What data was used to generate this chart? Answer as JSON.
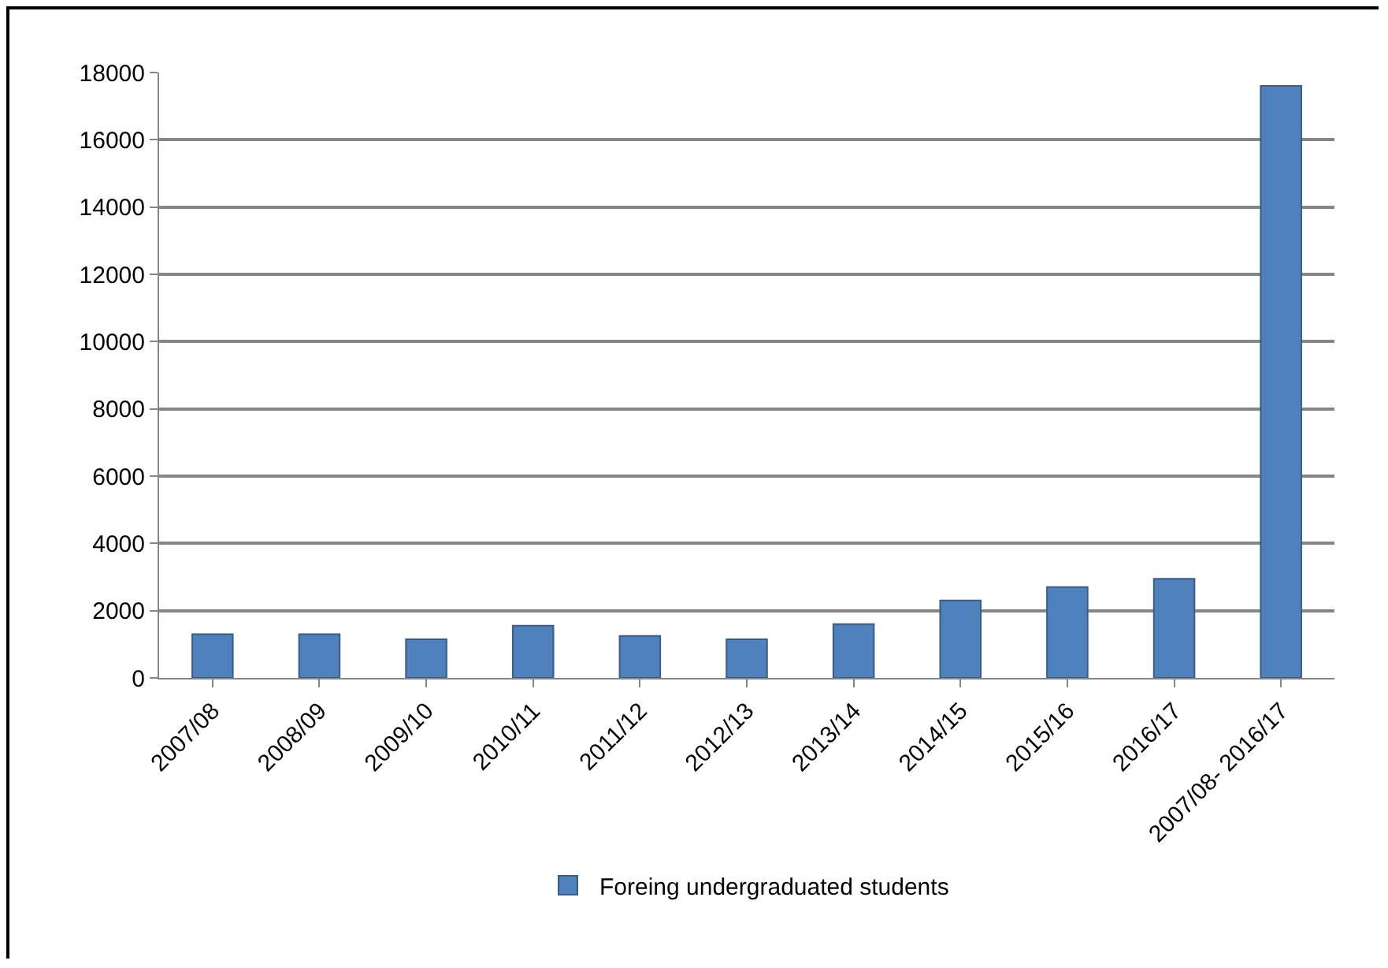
{
  "chart_data": {
    "type": "bar",
    "categories": [
      "2007/08",
      "2008/09",
      "2009/10",
      "2010/11",
      "2011/12",
      "2012/13",
      "2013/14",
      "2014/15",
      "2015/16",
      "2016/17",
      "2007/08- 2016/17"
    ],
    "series": [
      {
        "name": "Foreing undergraduated students",
        "color": "#4f81bd",
        "values": [
          1300,
          1300,
          1150,
          1550,
          1250,
          1150,
          1600,
          2300,
          2700,
          2950,
          17600
        ]
      }
    ],
    "ylim": [
      0,
      18000
    ],
    "yticks": [
      0,
      2000,
      4000,
      6000,
      8000,
      10000,
      12000,
      14000,
      16000,
      18000
    ],
    "grid": "y",
    "legend": "bottom"
  }
}
